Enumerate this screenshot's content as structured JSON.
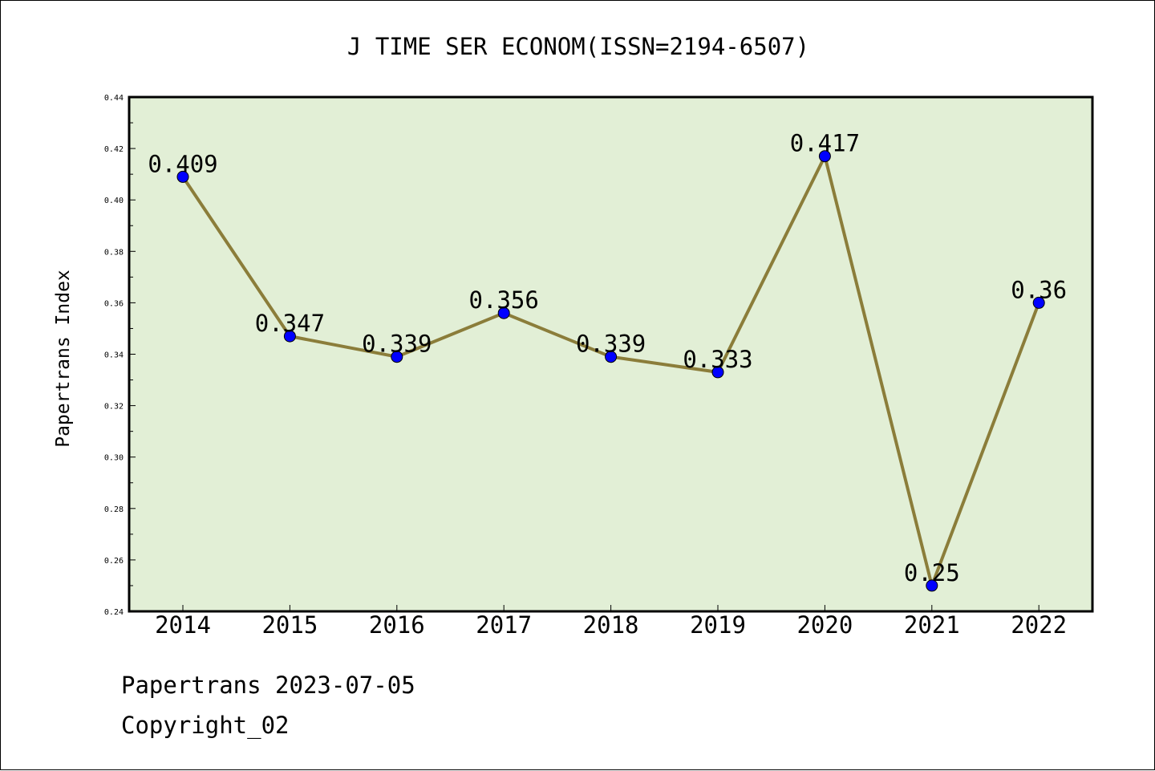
{
  "chart_data": {
    "type": "line",
    "title": "J TIME SER ECONOM(ISSN=2194-6507)",
    "xlabel": "",
    "ylabel": "Papertrans Index",
    "categories": [
      "2014",
      "2015",
      "2016",
      "2017",
      "2018",
      "2019",
      "2020",
      "2021",
      "2022"
    ],
    "series": [
      {
        "values": [
          0.409,
          0.347,
          0.339,
          0.356,
          0.339,
          0.333,
          0.417,
          0.25,
          0.36
        ],
        "data_labels": [
          "0.409",
          "0.347",
          "0.339",
          "0.356",
          "0.339",
          "0.333",
          "0.417",
          "0.25",
          "0.36"
        ],
        "line_color": "#8b7d3a",
        "marker_color": "#0000ff"
      }
    ],
    "ylim": [
      0.24,
      0.44
    ],
    "y_ticks": [
      "0.24",
      "0.26",
      "0.28",
      "0.30",
      "0.32",
      "0.34",
      "0.36",
      "0.38",
      "0.40",
      "0.42",
      "0.44"
    ],
    "y_tick_values": [
      0.24,
      0.26,
      0.28,
      0.3,
      0.32,
      0.34,
      0.36,
      0.38,
      0.4,
      0.42,
      0.44
    ],
    "grid": false,
    "plot_background": "#e2efd6"
  },
  "footer": {
    "date_line": "Papertrans 2023-07-05",
    "copyright_line": "Copyright_02"
  }
}
